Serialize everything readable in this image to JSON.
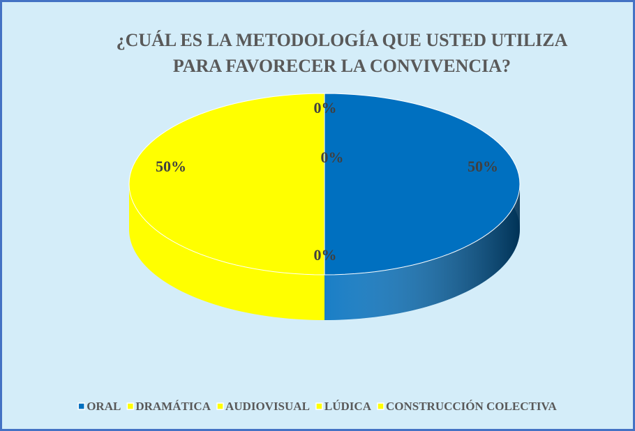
{
  "chart_data": {
    "type": "pie",
    "title": "¿CUÁL ES LA METODOLOGÍA QUE USTED UTILIZA PARA FAVORECER LA CONVIVENCIA?",
    "categories": [
      "ORAL",
      "DRAMÁTICA",
      "AUDIOVISUAL",
      "LÚDICA",
      "CONSTRUCCIÓN COLECTIVA"
    ],
    "values": [
      50,
      0,
      0,
      0,
      50
    ],
    "value_labels": [
      "50%",
      "0%",
      "0%",
      "0%",
      "50%"
    ],
    "colors": [
      "#0070c0",
      "#ffff00",
      "#ffff00",
      "#ffff00",
      "#ffff00"
    ],
    "legend": "bottom"
  }
}
